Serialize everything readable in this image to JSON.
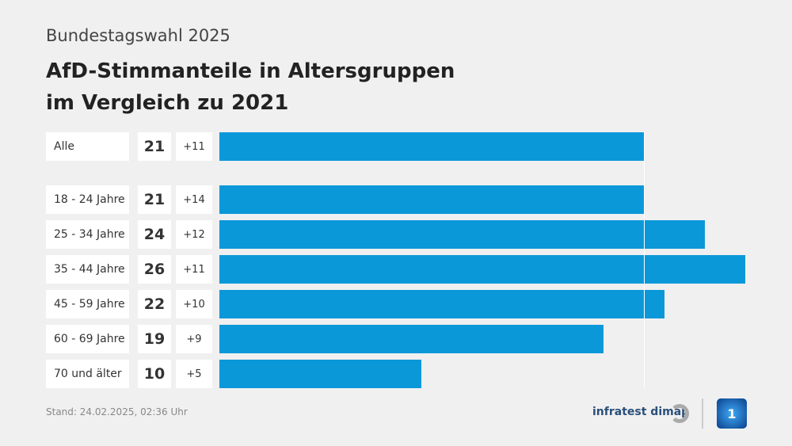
{
  "header": {
    "supertitle": "Bundestagswahl 2025",
    "title_line1": "AfD-Stimmanteile in Altersgruppen",
    "title_line2": "im Vergleich zu 2021"
  },
  "chart_data": {
    "type": "bar",
    "orientation": "horizontal",
    "bar_color": "#0b98d9",
    "reference_value": 21,
    "categories": [
      "Alle",
      "18 - 24 Jahre",
      "25 - 34 Jahre",
      "35 - 44 Jahre",
      "45 - 59 Jahre",
      "60 - 69 Jahre",
      "70 und älter"
    ],
    "values": [
      21,
      21,
      24,
      26,
      22,
      19,
      10
    ],
    "changes": [
      "+11",
      "+14",
      "+12",
      "+11",
      "+10",
      "+9",
      "+5"
    ]
  },
  "footer": {
    "stand": "Stand:  24.02.2025, 02:36 Uhr",
    "logo": "infratest dimap",
    "ard_logo": "1"
  }
}
